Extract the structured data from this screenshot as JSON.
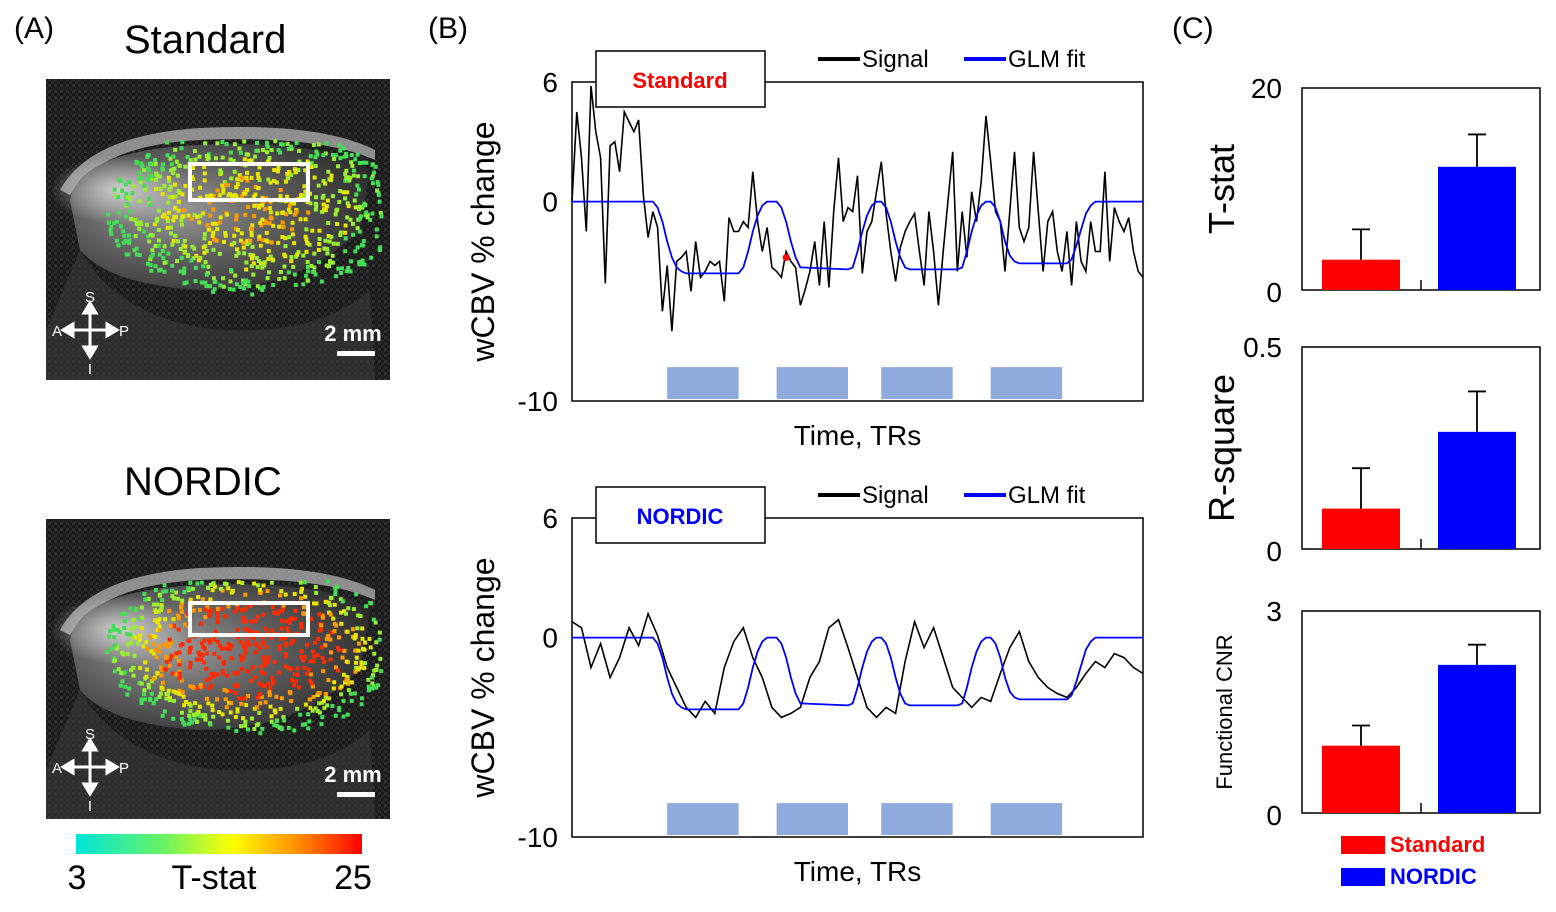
{
  "panels": {
    "a_label": "(A)",
    "b_label": "(B)",
    "c_label": "(C)"
  },
  "panel_a": {
    "maps": [
      {
        "title": "Standard",
        "orientation": {
          "sup": "S",
          "inf": "I",
          "ant": "A",
          "post": "P"
        },
        "scale_label": "2 mm"
      },
      {
        "title": "NORDIC",
        "orientation": {
          "sup": "S",
          "inf": "I",
          "ant": "A",
          "post": "P"
        },
        "scale_label": "2 mm"
      }
    ],
    "colorbar": {
      "min": "3",
      "max": "25",
      "label": "T-stat",
      "colors": [
        "#00e6d9",
        "#66f266",
        "#ffff00",
        "#ff8000",
        "#ff0000"
      ]
    }
  },
  "chart_data": [
    {
      "type": "line",
      "panel": "B-top",
      "title": "Standard",
      "title_color": "#ff0000",
      "xlabel": "Time, TRs",
      "ylabel": "wCBV % change",
      "ylim": [
        -10,
        6
      ],
      "yticks": [
        6,
        0,
        -10
      ],
      "xlim": [
        0,
        120
      ],
      "stim_blocks": [
        [
          20,
          35
        ],
        [
          43,
          58
        ],
        [
          65,
          80
        ],
        [
          88,
          103
        ]
      ],
      "stim_color": "#8faadc",
      "legend": [
        {
          "name": "Signal",
          "color": "#000000"
        },
        {
          "name": "GLM fit",
          "color": "#0000ff"
        }
      ],
      "series": [
        {
          "name": "Signal",
          "color": "#000000",
          "x": [
            0,
            1,
            2,
            3,
            4,
            5,
            6,
            7,
            8,
            9,
            10,
            11,
            12,
            13,
            14,
            15,
            16,
            17,
            18,
            19,
            20,
            21,
            22,
            23,
            24,
            25,
            26,
            27,
            28,
            29,
            30,
            31,
            32,
            33,
            34,
            35,
            36,
            37,
            38,
            39,
            40,
            41,
            42,
            43,
            44,
            45,
            46,
            47,
            48,
            49,
            50,
            51,
            52,
            53,
            54,
            55,
            56,
            57,
            58,
            59,
            60,
            61,
            62,
            63,
            64,
            65,
            66,
            67,
            68,
            69,
            70,
            71,
            72,
            73,
            74,
            75,
            76,
            77,
            78,
            79,
            80,
            81,
            82,
            83,
            84,
            85,
            86,
            87,
            88,
            89,
            90,
            91,
            92,
            93,
            94,
            95,
            96,
            97,
            98,
            99,
            100,
            101,
            102,
            103,
            104,
            105,
            106,
            107,
            108,
            109,
            110,
            111,
            112,
            113,
            114,
            115,
            116,
            117,
            118,
            119,
            120
          ],
          "values": [
            0.0,
            4.5,
            2.2,
            -1.5,
            5.8,
            3.5,
            2.2,
            -4.1,
            2.8,
            3.0,
            1.5,
            4.5,
            4.0,
            3.5,
            4.1,
            0.3,
            -1.8,
            -0.5,
            -1.3,
            -5.5,
            -3.2,
            -6.5,
            -3.0,
            -2.8,
            -2.5,
            -4.5,
            -2.0,
            -3.8,
            -3.5,
            -3.0,
            -3.2,
            -3.0,
            -5.0,
            -0.8,
            -1.5,
            -1.5,
            -1.0,
            -1.3,
            1.5,
            -1.0,
            -2.5,
            -1.3,
            -3.3,
            -3.5,
            -3.8,
            -2.5,
            -3.0,
            -3.3,
            -5.2,
            -4.4,
            -3.5,
            -2.0,
            -4.2,
            -1.0,
            -4.3,
            -0.5,
            2.2,
            -1.0,
            -0.3,
            -0.5,
            1.3,
            -3.6,
            -1.5,
            -1.0,
            0.5,
            2.0,
            -0.6,
            -2.5,
            -4.0,
            -2.3,
            -1.5,
            -1.0,
            -0.6,
            -2.5,
            -4.2,
            -0.5,
            -2.5,
            -5.2,
            -2.5,
            0.0,
            2.5,
            -3.5,
            -0.5,
            -2.8,
            0.5,
            -1.0,
            1.0,
            4.3,
            2.0,
            -0.5,
            -1.0,
            -3.5,
            -0.5,
            2.5,
            -1.3,
            -2.0,
            -1.3,
            2.5,
            -0.5,
            -3.5,
            -1.0,
            -0.5,
            -2.5,
            -3.5,
            -1.5,
            -4.2,
            -1.0,
            -3.0,
            -3.5,
            -1.0,
            -2.5,
            -2.5,
            1.5,
            -3.0,
            -0.3,
            -1.0,
            -1.5,
            -0.8,
            -2.5,
            -3.5,
            -3.8
          ]
        },
        {
          "name": "GLM fit",
          "color": "#0000ff",
          "x": [
            0,
            17,
            18,
            19,
            20,
            21,
            22,
            23,
            24,
            25,
            35,
            36,
            37,
            38,
            39,
            40,
            41,
            42,
            43,
            44,
            45,
            46,
            47,
            48,
            58,
            59,
            60,
            61,
            62,
            63,
            64,
            65,
            66,
            67,
            68,
            69,
            70,
            71,
            81,
            82,
            83,
            84,
            85,
            86,
            87,
            88,
            89,
            90,
            91,
            92,
            93,
            94,
            104,
            105,
            106,
            107,
            108,
            109,
            110,
            111,
            112,
            120
          ],
          "values": [
            0,
            0,
            -0.3,
            -1.0,
            -2.0,
            -2.8,
            -3.3,
            -3.5,
            -3.6,
            -3.6,
            -3.6,
            -3.3,
            -2.5,
            -1.5,
            -0.7,
            -0.2,
            0,
            0,
            0,
            -0.3,
            -1.0,
            -2.0,
            -2.8,
            -3.3,
            -3.4,
            -3.3,
            -2.5,
            -1.5,
            -0.7,
            -0.2,
            0,
            0,
            -0.3,
            -1.0,
            -2.0,
            -2.8,
            -3.3,
            -3.4,
            -3.4,
            -3.3,
            -2.5,
            -1.5,
            -0.7,
            -0.2,
            0,
            0,
            -0.3,
            -1.0,
            -2.0,
            -2.7,
            -3.0,
            -3.1,
            -3.1,
            -2.9,
            -2.2,
            -1.4,
            -0.6,
            -0.2,
            0,
            0,
            0,
            0
          ]
        }
      ],
      "annotation": {
        "label": "outlier marker",
        "x": 45,
        "y": -2.8,
        "color": "#ff0000"
      }
    },
    {
      "type": "line",
      "panel": "B-bottom",
      "title": "NORDIC",
      "title_color": "#0000ff",
      "xlabel": "Time, TRs",
      "ylabel": "wCBV % change",
      "ylim": [
        -10,
        6
      ],
      "yticks": [
        6,
        0,
        -10
      ],
      "xlim": [
        0,
        120
      ],
      "stim_blocks": [
        [
          20,
          35
        ],
        [
          43,
          58
        ],
        [
          65,
          80
        ],
        [
          88,
          103
        ]
      ],
      "stim_color": "#8faadc",
      "legend": [
        {
          "name": "Signal",
          "color": "#000000"
        },
        {
          "name": "GLM fit",
          "color": "#0000ff"
        }
      ],
      "series": [
        {
          "name": "Signal",
          "color": "#000000",
          "x": [
            0,
            2,
            4,
            6,
            8,
            10,
            12,
            14,
            16,
            18,
            20,
            22,
            24,
            26,
            28,
            30,
            32,
            34,
            36,
            38,
            40,
            42,
            44,
            46,
            48,
            50,
            52,
            54,
            56,
            58,
            60,
            62,
            64,
            66,
            68,
            70,
            72,
            74,
            76,
            78,
            80,
            82,
            84,
            86,
            88,
            90,
            92,
            94,
            96,
            98,
            100,
            102,
            104,
            106,
            108,
            110,
            112,
            114,
            116,
            118,
            120
          ],
          "values": [
            0.8,
            0.5,
            -1.5,
            -0.3,
            -2.0,
            -1.0,
            0.5,
            -0.4,
            1.2,
            0.1,
            -1.5,
            -2.5,
            -3.5,
            -4.0,
            -3.2,
            -3.8,
            -1.5,
            -0.2,
            0.5,
            -1.0,
            -2.0,
            -3.5,
            -4.0,
            -3.8,
            -3.5,
            -2.0,
            -1.2,
            0.5,
            0.9,
            -0.5,
            -2.0,
            -3.5,
            -4.0,
            -3.5,
            -3.8,
            -1.2,
            0.8,
            -0.5,
            0.5,
            -1.0,
            -2.5,
            -3.0,
            -3.5,
            -3.0,
            -3.2,
            -1.8,
            -0.5,
            0.3,
            -1.2,
            -2.0,
            -2.5,
            -2.8,
            -3.0,
            -2.5,
            -1.8,
            -1.2,
            -1.5,
            -0.8,
            -1.0,
            -1.5,
            -1.8
          ]
        },
        {
          "name": "GLM fit",
          "color": "#0000ff",
          "x": [
            0,
            17,
            18,
            19,
            20,
            21,
            22,
            23,
            24,
            25,
            35,
            36,
            37,
            38,
            39,
            40,
            41,
            42,
            43,
            44,
            45,
            46,
            47,
            48,
            58,
            59,
            60,
            61,
            62,
            63,
            64,
            65,
            66,
            67,
            68,
            69,
            70,
            71,
            81,
            82,
            83,
            84,
            85,
            86,
            87,
            88,
            89,
            90,
            91,
            92,
            93,
            94,
            104,
            105,
            106,
            107,
            108,
            109,
            110,
            111,
            112,
            120
          ],
          "values": [
            0,
            0,
            -0.3,
            -1.0,
            -2.0,
            -2.8,
            -3.3,
            -3.5,
            -3.6,
            -3.6,
            -3.6,
            -3.3,
            -2.5,
            -1.5,
            -0.7,
            -0.2,
            0,
            0,
            0,
            -0.3,
            -1.0,
            -2.0,
            -2.8,
            -3.3,
            -3.4,
            -3.3,
            -2.5,
            -1.5,
            -0.7,
            -0.2,
            0,
            0,
            -0.3,
            -1.0,
            -2.0,
            -2.8,
            -3.3,
            -3.4,
            -3.4,
            -3.3,
            -2.5,
            -1.5,
            -0.7,
            -0.2,
            0,
            0,
            -0.3,
            -1.0,
            -2.0,
            -2.7,
            -3.0,
            -3.1,
            -3.1,
            -2.9,
            -2.2,
            -1.4,
            -0.6,
            -0.2,
            0,
            0,
            0,
            0
          ]
        }
      ]
    },
    {
      "type": "bar",
      "panel": "C-top",
      "ylabel": "T-stat",
      "ylim": [
        0,
        20
      ],
      "yticks": [
        "20",
        "0"
      ],
      "categories": [
        "Standard",
        "NORDIC"
      ],
      "colors": [
        "#ff0000",
        "#0000ff"
      ],
      "values": [
        3.0,
        12.2
      ],
      "errors": [
        3.0,
        3.2
      ]
    },
    {
      "type": "bar",
      "panel": "C-middle",
      "ylabel": "R-square",
      "ylim": [
        0,
        0.5
      ],
      "yticks": [
        "0.5",
        "0"
      ],
      "categories": [
        "Standard",
        "NORDIC"
      ],
      "colors": [
        "#ff0000",
        "#0000ff"
      ],
      "values": [
        0.1,
        0.29
      ],
      "errors": [
        0.1,
        0.1
      ]
    },
    {
      "type": "bar",
      "panel": "C-bottom",
      "ylabel": "Functional CNR",
      "ylim": [
        0,
        3
      ],
      "yticks": [
        "3",
        "0"
      ],
      "categories": [
        "Standard",
        "NORDIC"
      ],
      "colors": [
        "#ff0000",
        "#0000ff"
      ],
      "values": [
        1.0,
        2.2
      ],
      "errors": [
        0.3,
        0.3
      ]
    }
  ],
  "bar_legend": [
    {
      "label": "Standard",
      "color": "#ff0000"
    },
    {
      "label": "NORDIC",
      "color": "#0000ff"
    }
  ]
}
